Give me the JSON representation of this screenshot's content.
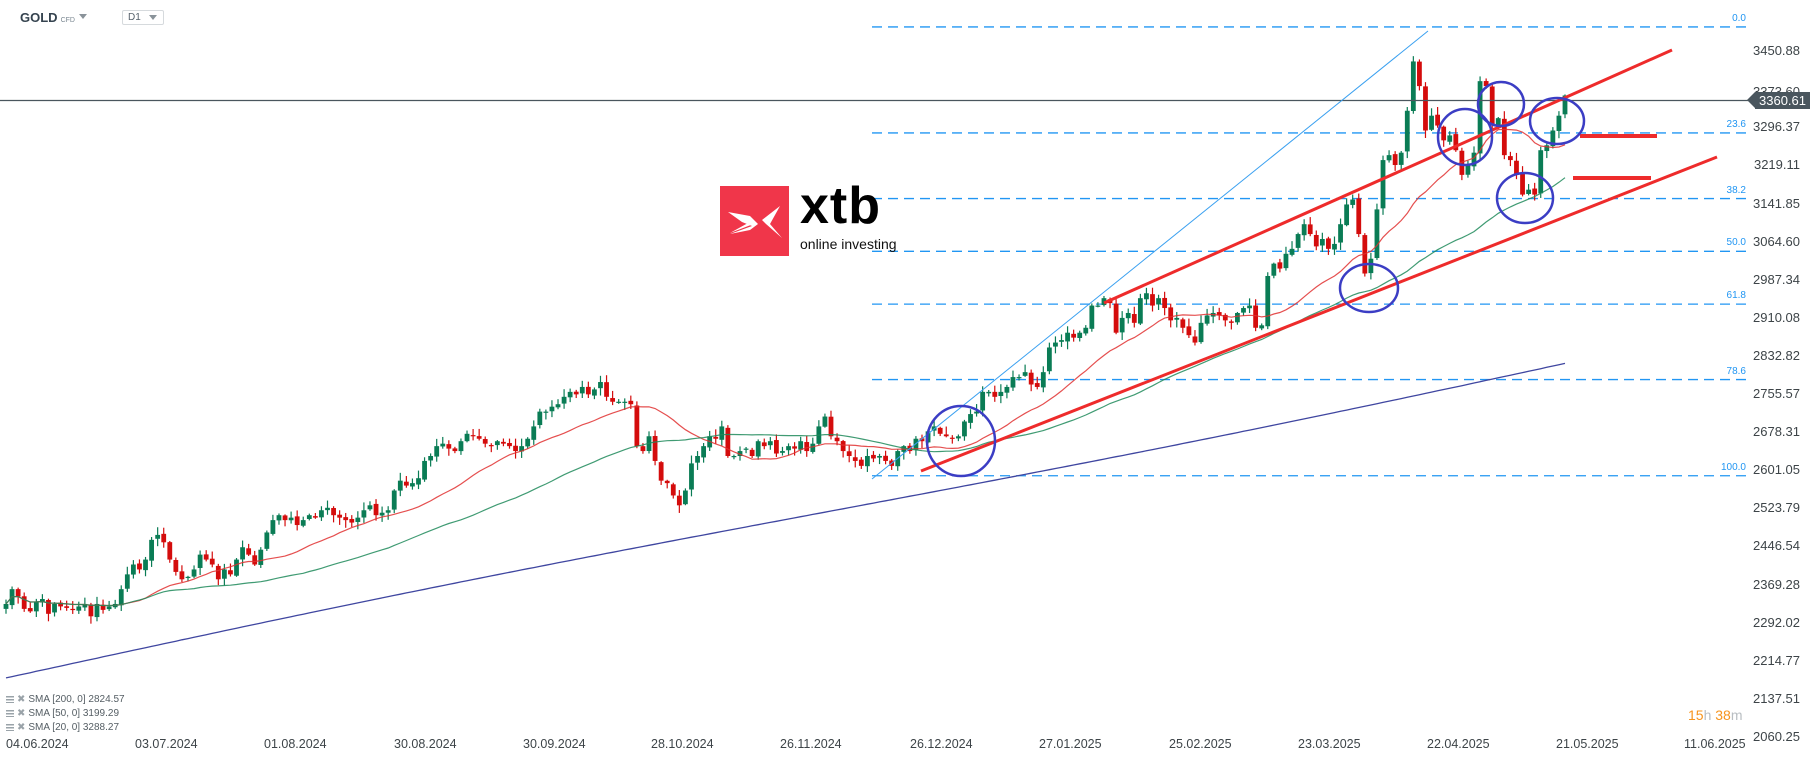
{
  "header": {
    "symbol": "GOLD",
    "symbol_type": "CFD",
    "timeframe": "D1"
  },
  "logo": {
    "word": "xtb",
    "tagline": "online investing"
  },
  "current_price": "3360.61",
  "countdown": {
    "hours": "15",
    "h_unit": "h",
    "minutes": "38",
    "m_unit": "m"
  },
  "indicators": [
    {
      "label": "SMA [200, 0] 2824.57",
      "color": "#3f46a0"
    },
    {
      "label": "SMA [50, 0] 3199.29",
      "color": "#1e8a5a"
    },
    {
      "label": "SMA [20, 0] 3288.27",
      "color": "#e03030"
    }
  ],
  "colors": {
    "bull": "#0a7c55",
    "bear": "#d40c0c",
    "fib": "#2196f3",
    "channel": "#ee2b2b",
    "circle": "#3b3dc4",
    "price_line": "#4a565e"
  },
  "chart_data": {
    "type": "candlestick",
    "title": "GOLD CFD D1",
    "xlabel": "",
    "ylabel": "",
    "y_axis_ticks": [
      "3450.88",
      "3296.37",
      "3219.11",
      "3141.85",
      "3064.60",
      "2987.34",
      "2910.08",
      "2832.82",
      "2755.57",
      "2678.31",
      "2601.05",
      "2523.79",
      "2446.54",
      "2369.28",
      "2292.02",
      "2214.77",
      "2137.51",
      "2060.25"
    ],
    "y_axis_partial": "3373.60",
    "ylim": [
      2060.25,
      3500
    ],
    "x_axis_ticks": [
      "04.06.2024",
      "03.07.2024",
      "01.08.2024",
      "30.08.2024",
      "30.09.2024",
      "28.10.2024",
      "26.11.2024",
      "26.12.2024",
      "27.01.2025",
      "25.02.2025",
      "23.03.2025",
      "22.04.2025",
      "21.05.2025",
      "11.06.2025"
    ],
    "fibonacci": [
      {
        "level": "0.0",
        "price": 3500
      },
      {
        "level": "23.6",
        "price": 3285
      },
      {
        "level": "38.2",
        "price": 3152
      },
      {
        "level": "50.0",
        "price": 3045
      },
      {
        "level": "61.8",
        "price": 2938
      },
      {
        "level": "78.6",
        "price": 2785
      },
      {
        "level": "100.0",
        "price": 2590
      }
    ],
    "sma": {
      "sma200_last": 2824.57,
      "sma50_last": 3199.29,
      "sma20_last": 3288.27
    },
    "closes": [
      2330,
      2360,
      2345,
      2320,
      2315,
      2335,
      2340,
      2310,
      2330,
      2325,
      2322,
      2318,
      2325,
      2330,
      2305,
      2330,
      2318,
      2325,
      2330,
      2360,
      2390,
      2410,
      2400,
      2420,
      2460,
      2470,
      2455,
      2420,
      2395,
      2380,
      2385,
      2400,
      2430,
      2420,
      2410,
      2380,
      2400,
      2390,
      2420,
      2445,
      2430,
      2410,
      2440,
      2475,
      2500,
      2510,
      2500,
      2505,
      2490,
      2500,
      2510,
      2505,
      2520,
      2525,
      2510,
      2505,
      2500,
      2495,
      2505,
      2520,
      2530,
      2510,
      2515,
      2520,
      2560,
      2580,
      2570,
      2575,
      2585,
      2620,
      2630,
      2650,
      2655,
      2645,
      2640,
      2660,
      2675,
      2670,
      2665,
      2655,
      2650,
      2660,
      2655,
      2650,
      2640,
      2650,
      2665,
      2690,
      2720,
      2720,
      2730,
      2735,
      2750,
      2760,
      2755,
      2770,
      2755,
      2765,
      2780,
      2750,
      2740,
      2740,
      2740,
      2735,
      2650,
      2640,
      2670,
      2620,
      2580,
      2575,
      2550,
      2530,
      2560,
      2615,
      2630,
      2650,
      2670,
      2665,
      2690,
      2630,
      2630,
      2640,
      2645,
      2630,
      2660,
      2650,
      2660,
      2635,
      2640,
      2650,
      2645,
      2660,
      2640,
      2655,
      2690,
      2710,
      2670,
      2660,
      2640,
      2630,
      2620,
      2610,
      2630,
      2625,
      2630,
      2620,
      2610,
      2640,
      2650,
      2640,
      2665,
      2660,
      2680,
      2690,
      2675,
      2670,
      2665,
      2670,
      2700,
      2715,
      2720,
      2760,
      2760,
      2750,
      2760,
      2770,
      2790,
      2790,
      2800,
      2775,
      2770,
      2800,
      2850,
      2860,
      2865,
      2880,
      2870,
      2880,
      2890,
      2935,
      2935,
      2950,
      2940,
      2880,
      2910,
      2920,
      2900,
      2950,
      2960,
      2935,
      2950,
      2930,
      2905,
      2910,
      2890,
      2875,
      2860,
      2900,
      2915,
      2920,
      2915,
      2905,
      2900,
      2920,
      2930,
      2935,
      2890,
      2895,
      2995,
      3020,
      3010,
      3040,
      3050,
      3080,
      3100,
      3080,
      3055,
      3070,
      3050,
      3060,
      3100,
      3140,
      3150,
      3080,
      3000,
      3030,
      3130,
      3230,
      3240,
      3220,
      3245,
      3330,
      3430,
      3380,
      3290,
      3320,
      3300,
      3270,
      3280,
      3250,
      3200,
      3220,
      3245,
      3390,
      3380,
      3300,
      3315,
      3240,
      3230,
      3200,
      3160,
      3170,
      3160,
      3250,
      3260,
      3290,
      3320,
      3361
    ]
  }
}
